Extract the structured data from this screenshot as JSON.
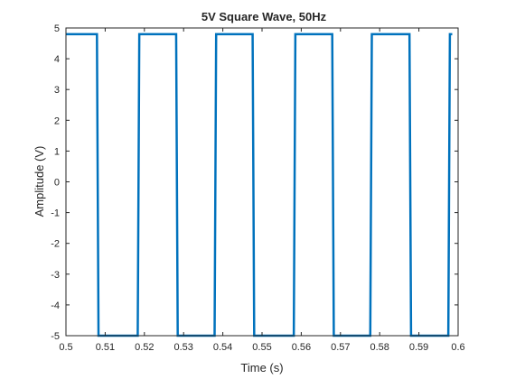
{
  "chart_data": {
    "type": "line",
    "title": "5V Square Wave, 50Hz",
    "xlabel": "Time (s)",
    "ylabel": "Amplitude (V)",
    "xlim": [
      0.5,
      0.6
    ],
    "ylim": [
      -5,
      5
    ],
    "xticks": [
      0.5,
      0.51,
      0.52,
      0.53,
      0.54,
      0.55,
      0.56,
      0.57,
      0.58,
      0.59,
      0.6
    ],
    "xtick_labels": [
      "0.5",
      "0.51",
      "0.52",
      "0.53",
      "0.54",
      "0.55",
      "0.56",
      "0.57",
      "0.58",
      "0.59",
      "0.6"
    ],
    "yticks": [
      5,
      4,
      3,
      2,
      1,
      0,
      -1,
      -2,
      -3,
      -4,
      -5
    ],
    "ytick_labels": [
      "5",
      "4",
      "3",
      "2",
      "1",
      "0",
      "-1",
      "-2",
      "-3",
      "-4",
      "-5"
    ],
    "grid": false,
    "series": [
      {
        "color": "#0072BD",
        "x": [
          0.5,
          0.5079,
          0.5083,
          0.5101,
          0.5183,
          0.5187,
          0.5281,
          0.5285,
          0.5379,
          0.5383,
          0.5476,
          0.548,
          0.5581,
          0.5585,
          0.5679,
          0.5683,
          0.5776,
          0.578,
          0.5876,
          0.588,
          0.5975,
          0.5979,
          0.5985
        ],
        "y": [
          4.8,
          4.8,
          -5,
          -5,
          -5,
          4.8,
          4.8,
          -5,
          -5,
          4.8,
          4.8,
          -5,
          -5,
          4.8,
          4.8,
          -5,
          -5,
          4.8,
          4.8,
          -5,
          -5,
          4.8,
          4.8
        ]
      }
    ]
  }
}
